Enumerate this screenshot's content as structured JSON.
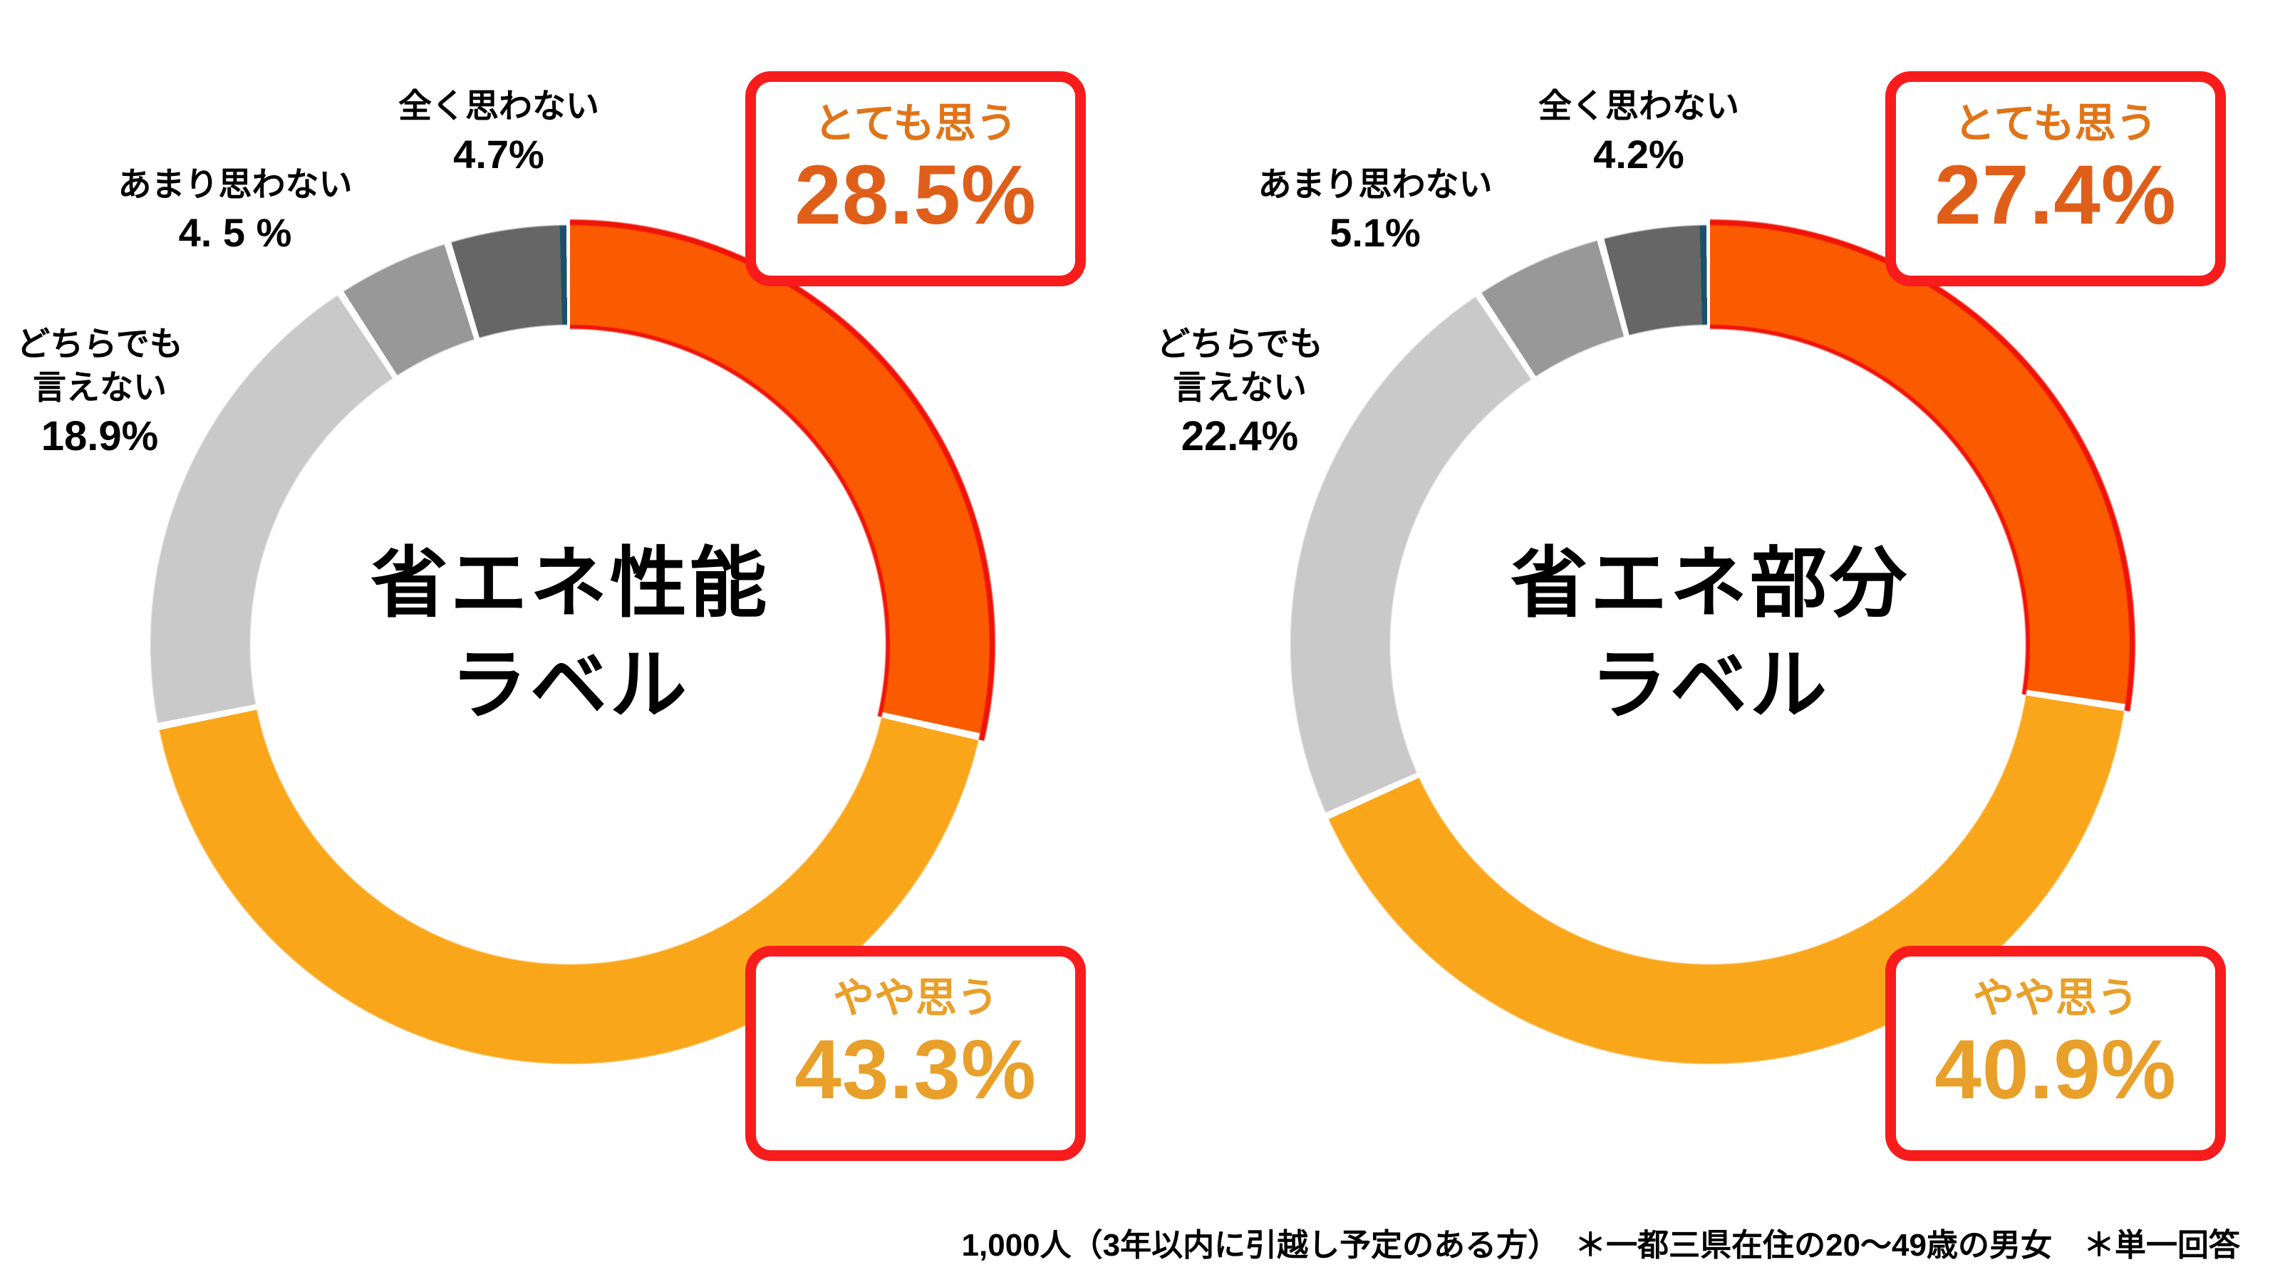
{
  "background": "#ffffff",
  "footnote": "1,000人（3年以内に引越し予定のある方）　＊一都三県在住の20～49歳の男女　＊単一回答",
  "colors": {
    "segment_very": "#FA5A00",
    "segment_very_rim": "#F01408",
    "segment_somewhat": "#FAA61B",
    "segment_neither": "#C9C9C9",
    "segment_notmuch": "#989898",
    "segment_notatall": "#666666",
    "divider_white": "#FFFFFF",
    "divider_navy": "#1C5068",
    "callout_border": "#F81C1C",
    "callout_very_label": "#E07418",
    "callout_very_value": "#DF5F1A",
    "callout_somewhat_label": "#E8A02A",
    "callout_somewhat_value": "#E8A02A",
    "label_text": "#000000"
  },
  "chart_data": [
    {
      "type": "pie",
      "variant": "donut",
      "title": "省エネ性能ラベル",
      "title_lines": [
        "省エネ性能",
        "ラベル"
      ],
      "labels": [
        "とても思う",
        "やや思う",
        "どちらでも言えない",
        "あまり思わない",
        "全く思わない"
      ],
      "values": [
        28.5,
        43.3,
        18.9,
        4.5,
        4.7
      ],
      "value_labels": [
        "28.5%",
        "43.3%",
        "18.9%",
        "4. 5 %",
        "4.7%"
      ],
      "colors": [
        "#FA5A00",
        "#FAA61B",
        "#C9C9C9",
        "#989898",
        "#666666"
      ],
      "start_angle_deg": 0,
      "direction": "clockwise",
      "legend_position": "outside-labels",
      "highlighted": [
        "とても思う",
        "やや思う"
      ],
      "callouts": {
        "very": {
          "label": "とても思う",
          "value": "28.5%"
        },
        "somewhat": {
          "label": "やや思う",
          "value": "43.3%"
        }
      },
      "outside_labels": {
        "notatall": {
          "name": "全く思わない",
          "value": "4.7%"
        },
        "notmuch": {
          "name": "あまり思わない",
          "value": "4. 5 %"
        },
        "neither": {
          "name_lines": [
            "どちらでも",
            "言えない"
          ],
          "value": "18.9%"
        }
      }
    },
    {
      "type": "pie",
      "variant": "donut",
      "title": "省エネ部分ラベル",
      "title_lines": [
        "省エネ部分",
        "ラベル"
      ],
      "labels": [
        "とても思う",
        "やや思う",
        "どちらでも言えない",
        "あまり思わない",
        "全く思わない"
      ],
      "values": [
        27.4,
        40.9,
        22.4,
        5.1,
        4.2
      ],
      "value_labels": [
        "27.4%",
        "40.9%",
        "22.4%",
        "5.1%",
        "4.2%"
      ],
      "colors": [
        "#FA5A00",
        "#FAA61B",
        "#C9C9C9",
        "#989898",
        "#666666"
      ],
      "start_angle_deg": 0,
      "direction": "clockwise",
      "legend_position": "outside-labels",
      "highlighted": [
        "とても思う",
        "やや思う"
      ],
      "callouts": {
        "very": {
          "label": "とても思う",
          "value": "27.4%"
        },
        "somewhat": {
          "label": "やや思う",
          "value": "40.9%"
        }
      },
      "outside_labels": {
        "notatall": {
          "name": "全く思わない",
          "value": "4.2%"
        },
        "notmuch": {
          "name": "あまり思わない",
          "value": "5.1%"
        },
        "neither": {
          "name_lines": [
            "どちらでも",
            "言えない"
          ],
          "value": "22.4%"
        }
      }
    }
  ]
}
